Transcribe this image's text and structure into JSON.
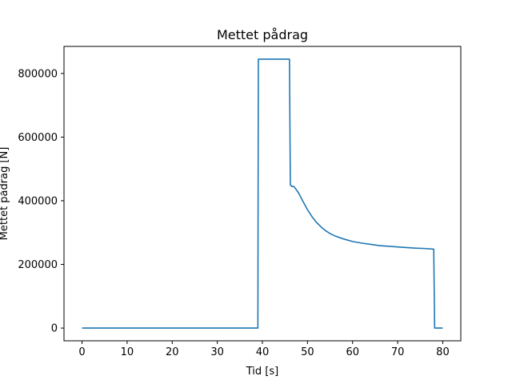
{
  "chart_data": {
    "type": "line",
    "title": "Mettet pådrag",
    "xlabel": "Tid [s]",
    "ylabel": "Mettet pådrag [N]",
    "xlim": [
      -4,
      84
    ],
    "ylim": [
      -40000,
      885000
    ],
    "grid": false,
    "x_ticks": [
      0,
      10,
      20,
      30,
      40,
      50,
      60,
      70,
      80
    ],
    "x_tick_labels": [
      "0",
      "10",
      "20",
      "30",
      "40",
      "50",
      "60",
      "70",
      "80"
    ],
    "y_ticks": [
      0,
      200000,
      400000,
      600000,
      800000
    ],
    "y_tick_labels": [
      "0",
      "200000",
      "400000",
      "600000",
      "800000"
    ],
    "series": [
      {
        "color": "#1f77b4",
        "x": [
          0,
          39,
          39.1,
          46,
          46.2,
          46.5,
          47,
          48,
          49,
          50,
          51,
          52,
          53,
          54,
          55,
          56,
          58,
          60,
          62,
          64,
          66,
          68,
          70,
          72,
          74,
          76,
          78,
          78.2,
          80
        ],
        "y": [
          0,
          0,
          845000,
          845000,
          450000,
          445000,
          445000,
          425000,
          398000,
          372000,
          350000,
          332000,
          318000,
          306000,
          297000,
          290000,
          280000,
          272000,
          267000,
          263000,
          259000,
          257000,
          255000,
          253000,
          251000,
          250000,
          248000,
          0,
          0
        ]
      }
    ]
  }
}
